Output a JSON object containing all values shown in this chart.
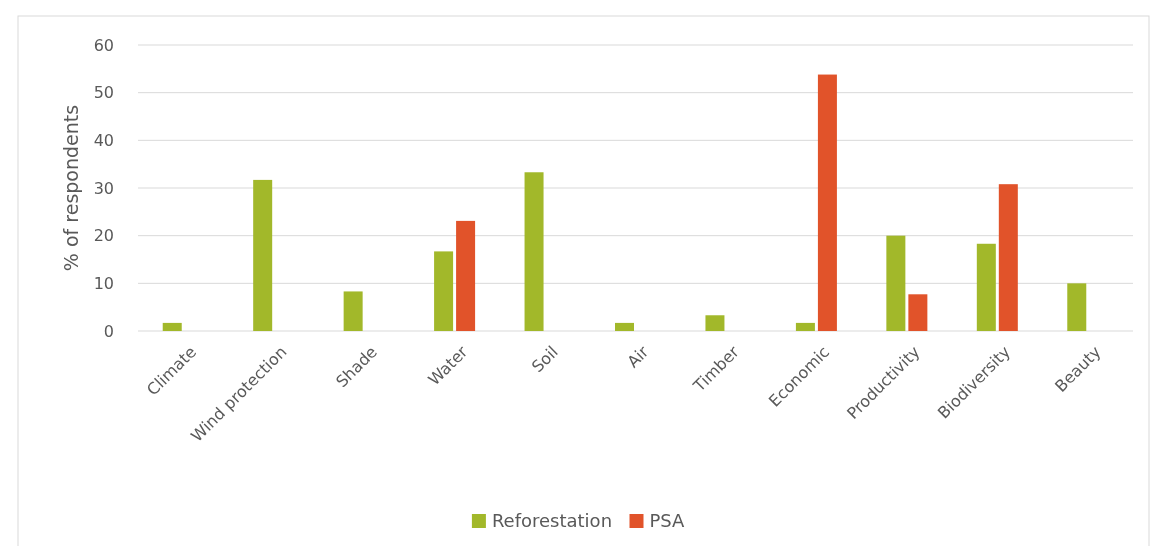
{
  "chart_data": {
    "type": "bar",
    "ylabel": "% of respondents",
    "categories": [
      "Climate",
      "Wind protection",
      "Shade",
      "Water",
      "Soil",
      "Air",
      "Timber",
      "Economic",
      "Productivity",
      "Biodiversity",
      "Beauty"
    ],
    "series": [
      {
        "name": "Reforestation",
        "color": "#a2b82a",
        "values": [
          1.7,
          31.7,
          8.3,
          16.7,
          33.3,
          1.7,
          3.3,
          1.7,
          20,
          18.3,
          10
        ]
      },
      {
        "name": "PSA",
        "color": "#e1532a",
        "values": [
          null,
          null,
          null,
          23.1,
          null,
          null,
          null,
          53.8,
          7.7,
          30.8,
          null
        ]
      }
    ],
    "ylim": [
      0,
      60
    ],
    "yticks": [
      0,
      10,
      20,
      30,
      40,
      50,
      60
    ],
    "grid": "y",
    "legend": "bottom"
  }
}
